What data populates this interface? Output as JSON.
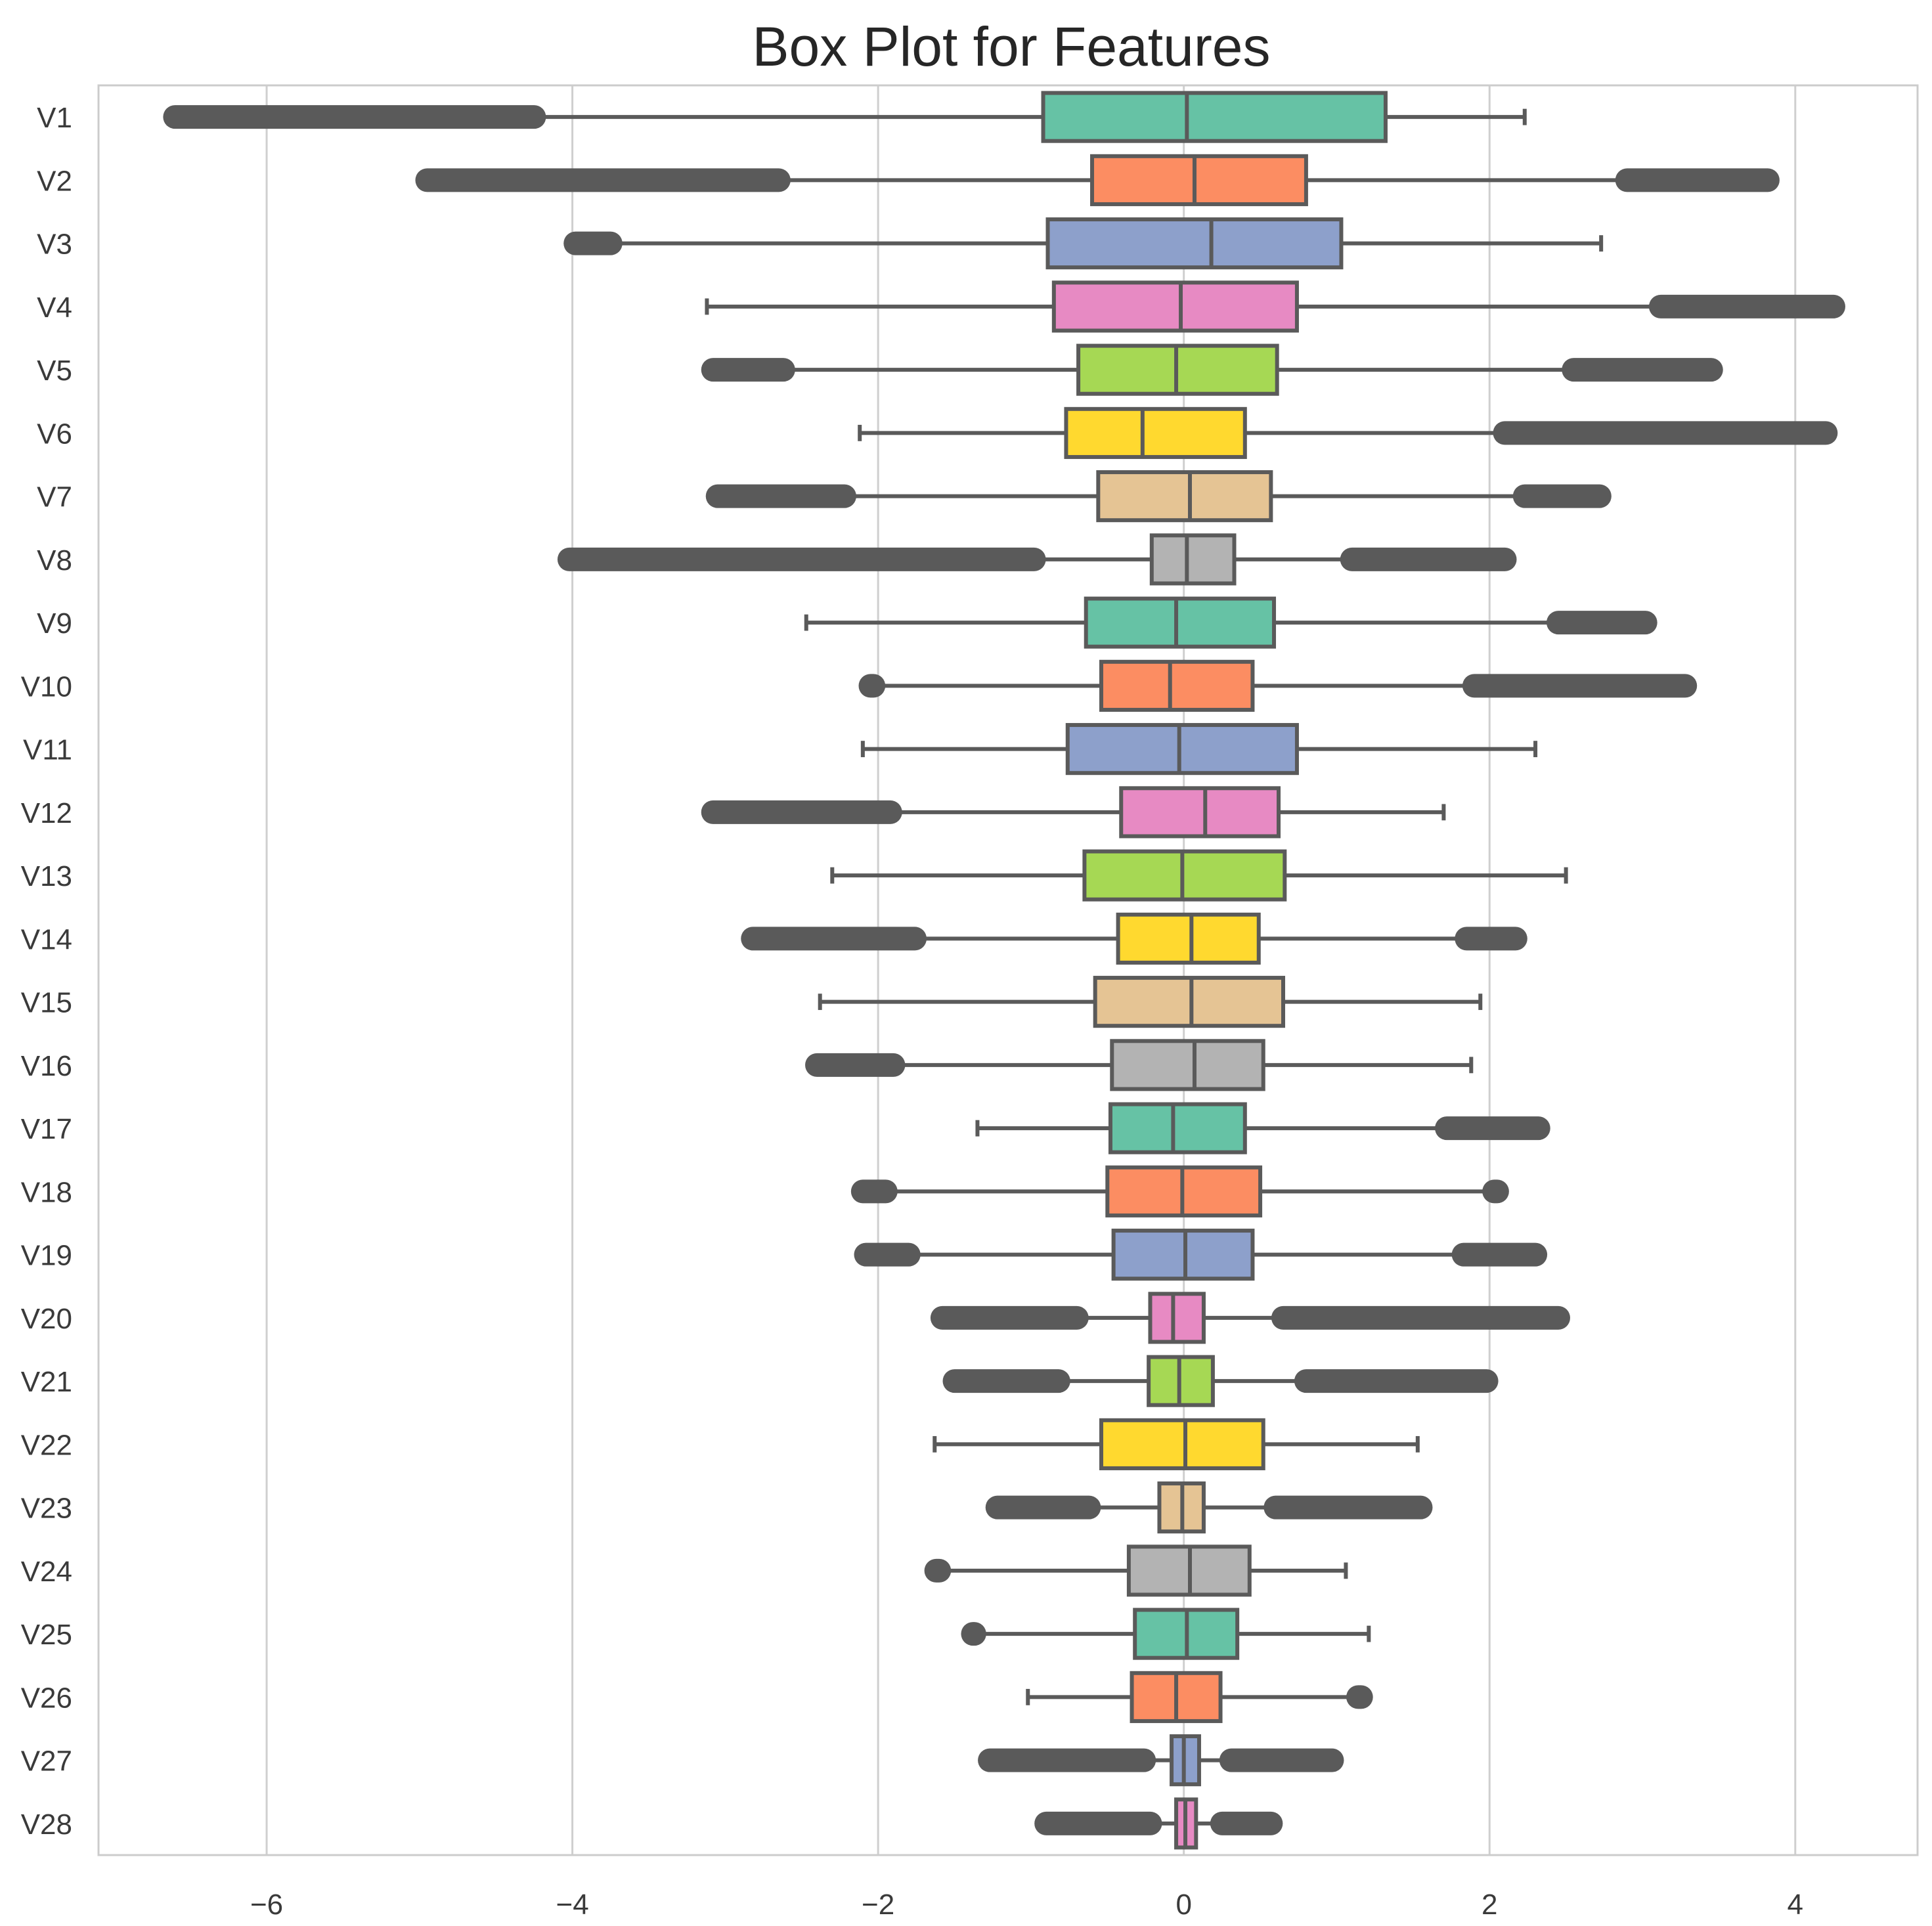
{
  "chart_data": {
    "type": "box",
    "orientation": "horizontal",
    "title": "Box Plot for Features",
    "xlabel": "",
    "ylabel": "",
    "xlim": [
      -7.1,
      4.8
    ],
    "x_ticks": [
      -6,
      -4,
      -2,
      0,
      2,
      4
    ],
    "x_tick_labels": [
      "−6",
      "−4",
      "−2",
      "0",
      "2",
      "4"
    ],
    "grid": "vertical",
    "palette": [
      "#66c2a5",
      "#fc8d62",
      "#8da0cb",
      "#e78ac3",
      "#a6d854",
      "#ffd92f",
      "#e5c494",
      "#b3b3b3"
    ],
    "line_color": "#5a5a5a",
    "series": [
      {
        "name": "V1",
        "whisker_low": -4.25,
        "q1": -0.92,
        "median": 0.02,
        "q3": 1.32,
        "whisker_high": 2.23,
        "outliers_low": [
          -6.6,
          -4.25
        ],
        "outliers_high": null
      },
      {
        "name": "V2",
        "whisker_low": -2.65,
        "q1": -0.6,
        "median": 0.07,
        "q3": 0.8,
        "whisker_high": 2.9,
        "outliers_low": [
          -4.95,
          -2.65
        ],
        "outliers_high": [
          2.9,
          3.82
        ]
      },
      {
        "name": "V3",
        "whisker_low": -3.75,
        "q1": -0.89,
        "median": 0.18,
        "q3": 1.03,
        "whisker_high": 2.73,
        "outliers_low": [
          -3.98,
          -3.75
        ],
        "outliers_high": null
      },
      {
        "name": "V4",
        "whisker_low": -3.12,
        "q1": -0.85,
        "median": -0.02,
        "q3": 0.74,
        "whisker_high": 3.12,
        "outliers_low": null,
        "outliers_high": [
          3.12,
          4.25
        ]
      },
      {
        "name": "V5",
        "whisker_low": -2.62,
        "q1": -0.69,
        "median": -0.05,
        "q3": 0.61,
        "whisker_high": 2.55,
        "outliers_low": [
          -3.08,
          -2.62
        ],
        "outliers_high": [
          2.55,
          3.45
        ]
      },
      {
        "name": "V6",
        "whisker_low": -2.12,
        "q1": -0.77,
        "median": -0.27,
        "q3": 0.4,
        "whisker_high": 2.1,
        "outliers_low": null,
        "outliers_high": [
          2.1,
          4.2
        ]
      },
      {
        "name": "V7",
        "whisker_low": -2.22,
        "q1": -0.56,
        "median": 0.04,
        "q3": 0.57,
        "whisker_high": 2.23,
        "outliers_low": [
          -3.05,
          -2.22
        ],
        "outliers_high": [
          2.23,
          2.72
        ]
      },
      {
        "name": "V8",
        "whisker_low": -0.98,
        "q1": -0.21,
        "median": 0.02,
        "q3": 0.33,
        "whisker_high": 1.1,
        "outliers_low": [
          -4.02,
          -0.98
        ],
        "outliers_high": [
          1.1,
          2.1
        ]
      },
      {
        "name": "V9",
        "whisker_low": -2.47,
        "q1": -0.64,
        "median": -0.05,
        "q3": 0.59,
        "whisker_high": 2.45,
        "outliers_low": null,
        "outliers_high": [
          2.45,
          3.02
        ]
      },
      {
        "name": "V10",
        "whisker_low": -2.03,
        "q1": -0.54,
        "median": -0.09,
        "q3": 0.45,
        "whisker_high": 1.9,
        "outliers_low": [
          -2.05,
          -2.03
        ],
        "outliers_high": [
          1.9,
          3.28
        ]
      },
      {
        "name": "V11",
        "whisker_low": -2.1,
        "q1": -0.76,
        "median": -0.03,
        "q3": 0.74,
        "whisker_high": 2.3,
        "outliers_low": null,
        "outliers_high": null
      },
      {
        "name": "V12",
        "whisker_low": -1.92,
        "q1": -0.41,
        "median": 0.14,
        "q3": 0.62,
        "whisker_high": 1.7,
        "outliers_low": [
          -3.08,
          -1.92
        ],
        "outliers_high": null
      },
      {
        "name": "V13",
        "whisker_low": -2.3,
        "q1": -0.65,
        "median": -0.01,
        "q3": 0.66,
        "whisker_high": 2.5,
        "outliers_low": null,
        "outliers_high": null
      },
      {
        "name": "V14",
        "whisker_low": -1.76,
        "q1": -0.43,
        "median": 0.05,
        "q3": 0.49,
        "whisker_high": 1.85,
        "outliers_low": [
          -2.82,
          -1.76
        ],
        "outliers_high": [
          1.85,
          2.17
        ]
      },
      {
        "name": "V15",
        "whisker_low": -2.38,
        "q1": -0.58,
        "median": 0.05,
        "q3": 0.65,
        "whisker_high": 1.94,
        "outliers_low": null,
        "outliers_high": null
      },
      {
        "name": "V16",
        "whisker_low": -1.9,
        "q1": -0.47,
        "median": 0.07,
        "q3": 0.52,
        "whisker_high": 1.88,
        "outliers_low": [
          -2.4,
          -1.9
        ],
        "outliers_high": null
      },
      {
        "name": "V17",
        "whisker_low": -1.35,
        "q1": -0.48,
        "median": -0.07,
        "q3": 0.4,
        "whisker_high": 1.72,
        "outliers_low": null,
        "outliers_high": [
          1.72,
          2.32
        ]
      },
      {
        "name": "V18",
        "whisker_low": -1.95,
        "q1": -0.5,
        "median": -0.01,
        "q3": 0.5,
        "whisker_high": 2.03,
        "outliers_low": [
          -2.1,
          -1.95
        ],
        "outliers_high": [
          2.03,
          2.05
        ]
      },
      {
        "name": "V19",
        "whisker_low": -1.8,
        "q1": -0.46,
        "median": 0.01,
        "q3": 0.45,
        "whisker_high": 1.83,
        "outliers_low": [
          -2.08,
          -1.8
        ],
        "outliers_high": [
          1.83,
          2.3
        ]
      },
      {
        "name": "V20",
        "whisker_low": -0.7,
        "q1": -0.22,
        "median": -0.07,
        "q3": 0.13,
        "whisker_high": 0.65,
        "outliers_low": [
          -1.58,
          -0.7
        ],
        "outliers_high": [
          0.65,
          2.45
        ]
      },
      {
        "name": "V21",
        "whisker_low": -0.82,
        "q1": -0.23,
        "median": -0.03,
        "q3": 0.19,
        "whisker_high": 0.8,
        "outliers_low": [
          -1.5,
          -0.82
        ],
        "outliers_high": [
          0.8,
          1.98
        ]
      },
      {
        "name": "V22",
        "whisker_low": -1.63,
        "q1": -0.54,
        "median": 0.01,
        "q3": 0.52,
        "whisker_high": 1.53,
        "outliers_low": null,
        "outliers_high": null
      },
      {
        "name": "V23",
        "whisker_low": -0.62,
        "q1": -0.16,
        "median": -0.01,
        "q3": 0.13,
        "whisker_high": 0.6,
        "outliers_low": [
          -1.22,
          -0.62
        ],
        "outliers_high": [
          0.6,
          1.55
        ]
      },
      {
        "name": "V24",
        "whisker_low": -1.6,
        "q1": -0.36,
        "median": 0.04,
        "q3": 0.43,
        "whisker_high": 1.06,
        "outliers_low": [
          -1.62,
          -1.6
        ],
        "outliers_high": null
      },
      {
        "name": "V25",
        "whisker_low": -1.37,
        "q1": -0.32,
        "median": 0.02,
        "q3": 0.35,
        "whisker_high": 1.21,
        "outliers_low": [
          -1.38,
          -1.37
        ],
        "outliers_high": null
      },
      {
        "name": "V26",
        "whisker_low": -1.02,
        "q1": -0.34,
        "median": -0.05,
        "q3": 0.24,
        "whisker_high": 1.14,
        "outliers_low": null,
        "outliers_high": [
          1.14,
          1.16
        ]
      },
      {
        "name": "V27",
        "whisker_low": -0.26,
        "q1": -0.08,
        "median": 0.0,
        "q3": 0.1,
        "whisker_high": 0.31,
        "outliers_low": [
          -1.27,
          -0.26
        ],
        "outliers_high": [
          0.31,
          0.97
        ]
      },
      {
        "name": "V28",
        "whisker_low": -0.22,
        "q1": -0.05,
        "median": 0.01,
        "q3": 0.08,
        "whisker_high": 0.25,
        "outliers_low": [
          -0.9,
          -0.22
        ],
        "outliers_high": [
          0.25,
          0.57
        ]
      }
    ]
  }
}
